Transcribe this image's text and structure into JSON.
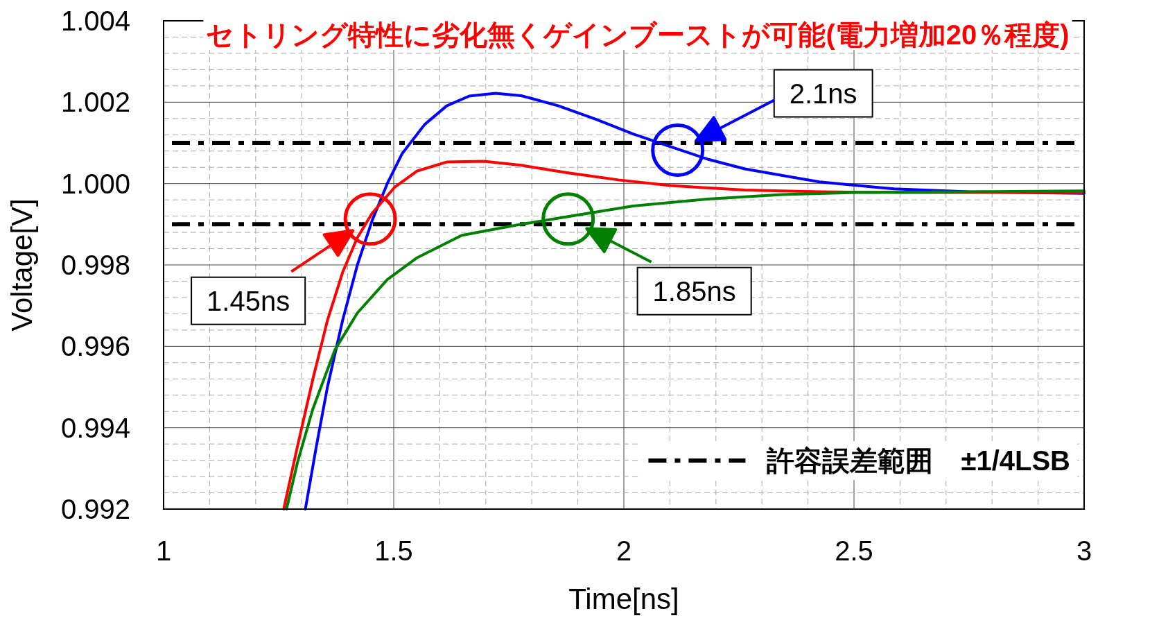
{
  "chart_data": {
    "type": "line",
    "title": "セトリング特性に劣化無くゲインブーストが可能(電力増加20％程度)",
    "xlabel": "Time[ns]",
    "ylabel": "Voltage[V]",
    "xlim": [
      1,
      3
    ],
    "xticks": [
      1,
      1.5,
      2,
      2.5,
      3
    ],
    "ylim": [
      0.992,
      1.004
    ],
    "yticks": [
      {
        "value": 0.992,
        "label": "0.992"
      },
      {
        "value": 0.994,
        "label": "0.994"
      },
      {
        "value": 0.996,
        "label": "0.996"
      },
      {
        "value": 0.998,
        "label": "0.998"
      },
      {
        "value": 1,
        "label": "1.000"
      },
      {
        "value": 1.002,
        "label": "1.002"
      },
      {
        "value": 1.004,
        "label": "1.004"
      }
    ],
    "grid": true,
    "legend": "bottom right",
    "series": [
      {
        "color": "#0000ff",
        "x": [
          1.308,
          1.332,
          1.356,
          1.389,
          1.421,
          1.453,
          1.486,
          1.518,
          1.567,
          1.615,
          1.664,
          1.721,
          1.777,
          1.858,
          1.939,
          2.02,
          2.101,
          2.182,
          2.263,
          2.425,
          2.587,
          2.749,
          3
        ],
        "values": [
          0.992,
          0.99355,
          0.995,
          0.99664,
          0.998,
          0.99909,
          1.0,
          1.00073,
          1.00145,
          1.00191,
          1.00215,
          1.00222,
          1.00216,
          1.00191,
          1.00158,
          1.00122,
          1.00091,
          1.0006,
          1.00036,
          1.00004,
          0.99987,
          0.9998,
          0.99976
        ]
      },
      {
        "color": "#ff0000",
        "x": [
          1.261,
          1.291,
          1.324,
          1.356,
          1.389,
          1.421,
          1.453,
          1.502,
          1.551,
          1.615,
          1.696,
          1.777,
          1.874,
          1.988,
          2.101,
          2.263,
          2.425,
          2.587,
          3
        ],
        "values": [
          0.992,
          0.99355,
          0.99518,
          0.99664,
          0.99782,
          0.99867,
          0.99927,
          0.99991,
          1.00031,
          1.00053,
          1.00055,
          1.00045,
          1.00027,
          1.00009,
          0.99995,
          0.99984,
          0.9998,
          0.99978,
          0.99978
        ]
      },
      {
        "type": "scatter",
        "marker": "circle",
        "colors": [
          "#0000ff",
          "#ff0000",
          "#008000"
        ],
        "x": [
          2.117,
          1.449,
          1.879
        ],
        "values": [
          1.00082,
          0.99913,
          0.99913
        ]
      },
      {
        "color": "#008000",
        "x": [
          1.267,
          1.291,
          1.324,
          1.372,
          1.421,
          1.486,
          1.551,
          1.648,
          1.777,
          1.874,
          2.02,
          2.182,
          2.344,
          2.506,
          2.749,
          3
        ],
        "values": [
          0.992,
          0.99315,
          0.99445,
          0.99591,
          0.99682,
          0.99764,
          0.99818,
          0.99873,
          0.999,
          0.99918,
          0.99945,
          0.99962,
          0.99973,
          0.99978,
          0.9998,
          0.99982
        ]
      }
    ],
    "ref_lines": [
      {
        "axis": "y",
        "value": 1.001,
        "label": "許容誤差範囲　±1/4LSB",
        "color": "#000000",
        "line_style": "dashdot"
      },
      {
        "axis": "y",
        "value": 0.999,
        "color": "#000000",
        "line_style": "dashdot"
      }
    ],
    "annotations": [
      "2.1ns",
      "1.45ns",
      "1.85ns"
    ]
  }
}
